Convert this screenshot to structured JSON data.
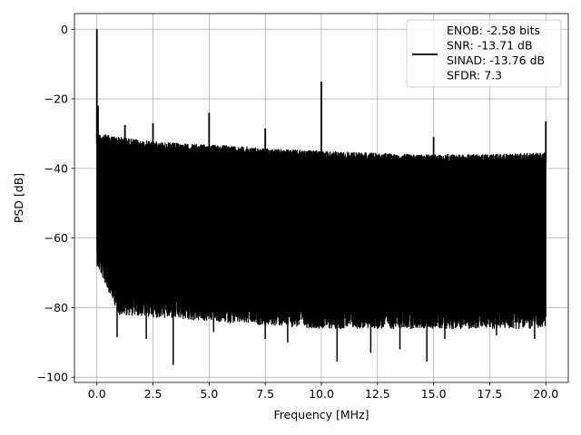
{
  "chart_data": {
    "type": "line",
    "title": "",
    "xlabel": "Frequency [MHz]",
    "ylabel": "PSD [dB]",
    "xlim": [
      -1.0,
      21.0
    ],
    "ylim": [
      -101.5,
      4.5
    ],
    "xticks": [
      0.0,
      2.5,
      5.0,
      7.5,
      10.0,
      12.5,
      15.0,
      17.5,
      20.0
    ],
    "xtick_labels": [
      "0.0",
      "2.5",
      "5.0",
      "7.5",
      "10.0",
      "12.5",
      "15.0",
      "17.5",
      "20.0"
    ],
    "yticks": [
      0,
      -20,
      -40,
      -60,
      -80,
      -100
    ],
    "ytick_labels": [
      "0",
      "−20",
      "−40",
      "−60",
      "−80",
      "−100"
    ],
    "grid": true,
    "legend_position": "top-right",
    "series": [
      {
        "legend_lines": [
          "ENOB: -2.58 bits",
          "SNR: -13.71 dB",
          "SINAD: -13.76 dB",
          "SFDR: 7.3"
        ],
        "color": "#000000",
        "envelope_upper": [
          {
            "x": 0.0,
            "y": -30
          },
          {
            "x": 1.0,
            "y": -31
          },
          {
            "x": 2.0,
            "y": -32
          },
          {
            "x": 4.0,
            "y": -33
          },
          {
            "x": 6.0,
            "y": -33.5
          },
          {
            "x": 8.0,
            "y": -34.5
          },
          {
            "x": 10.0,
            "y": -35
          },
          {
            "x": 12.0,
            "y": -35.5
          },
          {
            "x": 14.0,
            "y": -36
          },
          {
            "x": 16.0,
            "y": -36
          },
          {
            "x": 18.0,
            "y": -36
          },
          {
            "x": 20.0,
            "y": -35.5
          }
        ],
        "envelope_lower": [
          {
            "x": 0.0,
            "y": -62
          },
          {
            "x": 1.0,
            "y": -76
          },
          {
            "x": 5.0,
            "y": -78
          },
          {
            "x": 10.0,
            "y": -80
          },
          {
            "x": 15.0,
            "y": -80
          },
          {
            "x": 20.0,
            "y": -80
          }
        ],
        "peaks": [
          {
            "x": 0.0,
            "y": 0.0
          },
          {
            "x": 0.05,
            "y": -22
          },
          {
            "x": 1.25,
            "y": -27.5
          },
          {
            "x": 2.5,
            "y": -27
          },
          {
            "x": 5.0,
            "y": -24
          },
          {
            "x": 7.5,
            "y": -28.5
          },
          {
            "x": 10.0,
            "y": -15
          },
          {
            "x": 15.0,
            "y": -31
          },
          {
            "x": 20.0,
            "y": -26.5
          }
        ],
        "troughs": [
          {
            "x": 0.9,
            "y": -88.5
          },
          {
            "x": 2.2,
            "y": -89
          },
          {
            "x": 3.4,
            "y": -96.5
          },
          {
            "x": 5.2,
            "y": -87
          },
          {
            "x": 7.5,
            "y": -89
          },
          {
            "x": 8.5,
            "y": -90
          },
          {
            "x": 10.7,
            "y": -95.5
          },
          {
            "x": 12.2,
            "y": -93
          },
          {
            "x": 13.5,
            "y": -92
          },
          {
            "x": 14.7,
            "y": -95.5
          },
          {
            "x": 15.5,
            "y": -89
          },
          {
            "x": 17.8,
            "y": -88
          },
          {
            "x": 19.5,
            "y": -89
          }
        ]
      }
    ]
  }
}
